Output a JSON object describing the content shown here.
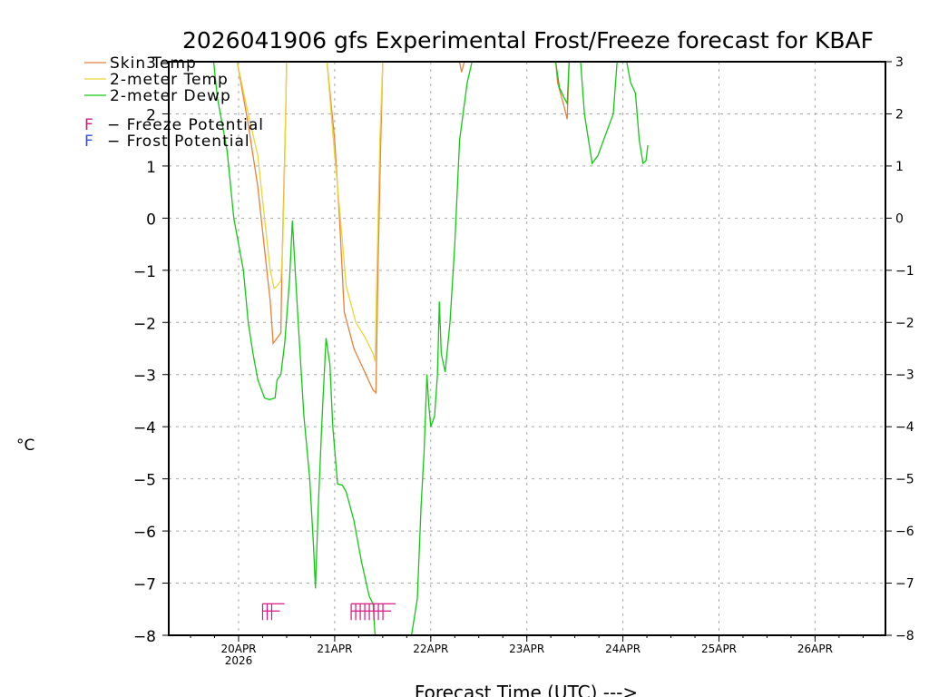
{
  "chart_data": {
    "type": "line",
    "title": "2026041906 gfs Experimental Frost/Freeze forecast for KBAF",
    "xlabel": "Forecast Time (UTC) --->",
    "ylabel": "°C",
    "ylim": [
      -8,
      3
    ],
    "xlim_days": [
      -0.73,
      6.73
    ],
    "y_ticks": [
      3,
      2,
      1,
      0,
      -1,
      -2,
      -3,
      -4,
      -5,
      -6,
      -7,
      -8
    ],
    "y_tick_labels": [
      "3",
      "2",
      "1",
      "0",
      "−1",
      "−2",
      "−3",
      "−4",
      "−5",
      "−6",
      "−7",
      "−8"
    ],
    "right_tick_labels": [
      "3",
      "2",
      "1",
      "0",
      "−1",
      "−2",
      "−3",
      "−4",
      "−5",
      "−6",
      "−7",
      "−8"
    ],
    "x_ticks": [
      0,
      1,
      2,
      3,
      4,
      5,
      6
    ],
    "x_tick_labels": [
      "20APR",
      "21APR",
      "22APR",
      "23APR",
      "24APR",
      "25APR",
      "26APR"
    ],
    "x_tick_sublabel": "2026",
    "grid": true,
    "legend_position": "top-left",
    "legend": [
      {
        "label": "Skin Temp",
        "color": "#e8803a",
        "kind": "line"
      },
      {
        "label": "2-meter Temp",
        "color": "#e8d63a",
        "kind": "line"
      },
      {
        "label": "2-meter Dewp",
        "color": "#14c814",
        "kind": "line"
      },
      {
        "label": "F - Freeze Potential",
        "color": "#d81480",
        "kind": "marker",
        "marker": "F"
      },
      {
        "label": "F - Frost Potential",
        "color": "#3050e8",
        "kind": "marker",
        "marker": "F"
      }
    ],
    "series": [
      {
        "name": "Skin Temp",
        "color": "#e8803a",
        "segments": [
          [
            [
              -0.015,
              3.0
            ],
            [
              0.1,
              1.8
            ],
            [
              0.2,
              0.6
            ],
            [
              0.27,
              -0.6
            ],
            [
              0.33,
              -1.6
            ],
            [
              0.36,
              -2.4
            ],
            [
              0.4,
              -2.3
            ],
            [
              0.44,
              -2.2
            ],
            [
              0.45,
              -1.0
            ],
            [
              0.47,
              0.5
            ],
            [
              0.49,
              2.0
            ],
            [
              0.5,
              3.0
            ]
          ],
          [
            [
              0.92,
              3.0
            ],
            [
              1.0,
              1.5
            ],
            [
              1.05,
              0.0
            ],
            [
              1.1,
              -1.8
            ],
            [
              1.2,
              -2.5
            ],
            [
              1.3,
              -2.9
            ],
            [
              1.4,
              -3.3
            ],
            [
              1.43,
              -3.35
            ],
            [
              1.45,
              -1.0
            ],
            [
              1.48,
              1.5
            ],
            [
              1.5,
              3.0
            ]
          ],
          [
            [
              2.3,
              3.0
            ],
            [
              2.32,
              2.8
            ],
            [
              2.35,
              3.0
            ]
          ],
          [
            [
              3.3,
              3.0
            ],
            [
              3.32,
              2.6
            ],
            [
              3.38,
              2.2
            ],
            [
              3.42,
              1.9
            ],
            [
              3.43,
              2.4
            ],
            [
              3.44,
              3.0
            ]
          ]
        ]
      },
      {
        "name": "2-meter Temp",
        "color": "#e8d63a",
        "segments": [
          [
            [
              -0.015,
              3.0
            ],
            [
              0.1,
              2.0
            ],
            [
              0.2,
              1.2
            ],
            [
              0.27,
              0.0
            ],
            [
              0.33,
              -1.0
            ],
            [
              0.37,
              -1.35
            ],
            [
              0.4,
              -1.3
            ],
            [
              0.44,
              -1.2
            ],
            [
              0.46,
              -0.5
            ],
            [
              0.48,
              1.0
            ],
            [
              0.5,
              3.0
            ]
          ],
          [
            [
              0.92,
              3.0
            ],
            [
              1.0,
              1.2
            ],
            [
              1.05,
              0.2
            ],
            [
              1.12,
              -1.3
            ],
            [
              1.22,
              -2.0
            ],
            [
              1.32,
              -2.3
            ],
            [
              1.4,
              -2.6
            ],
            [
              1.42,
              -2.75
            ],
            [
              1.44,
              -1.0
            ],
            [
              1.47,
              1.5
            ],
            [
              1.5,
              3.0
            ]
          ]
        ]
      },
      {
        "name": "2-meter Dewp",
        "color": "#14c814",
        "segments": [
          [
            [
              -0.26,
              3.0
            ],
            [
              -0.22,
              2.3
            ],
            [
              -0.12,
              1.3
            ],
            [
              -0.05,
              0.0
            ],
            [
              0.05,
              -1.0
            ],
            [
              0.1,
              -2.0
            ],
            [
              0.15,
              -2.6
            ],
            [
              0.2,
              -3.1
            ],
            [
              0.27,
              -3.45
            ],
            [
              0.32,
              -3.48
            ],
            [
              0.38,
              -3.45
            ],
            [
              0.4,
              -3.1
            ],
            [
              0.44,
              -3.0
            ],
            [
              0.48,
              -2.4
            ],
            [
              0.53,
              -1.2
            ],
            [
              0.56,
              -0.05
            ],
            [
              0.58,
              -0.7
            ],
            [
              0.62,
              -2.0
            ],
            [
              0.68,
              -3.8
            ],
            [
              0.74,
              -5.0
            ],
            [
              0.78,
              -6.3
            ],
            [
              0.8,
              -7.1
            ],
            [
              0.83,
              -5.5
            ],
            [
              0.87,
              -3.8
            ],
            [
              0.91,
              -2.3
            ],
            [
              0.95,
              -2.8
            ],
            [
              0.98,
              -4.0
            ],
            [
              1.03,
              -5.1
            ],
            [
              1.08,
              -5.12
            ],
            [
              1.12,
              -5.25
            ],
            [
              1.2,
              -5.8
            ],
            [
              1.28,
              -6.6
            ],
            [
              1.36,
              -7.25
            ],
            [
              1.4,
              -7.4
            ],
            [
              1.42,
              -8.0
            ]
          ],
          [
            [
              1.8,
              -8.0
            ],
            [
              1.86,
              -7.3
            ],
            [
              1.9,
              -5.5
            ],
            [
              1.93,
              -4.5
            ],
            [
              1.96,
              -3.0
            ],
            [
              1.98,
              -3.6
            ],
            [
              2.0,
              -4.0
            ],
            [
              2.04,
              -3.8
            ],
            [
              2.07,
              -3.0
            ],
            [
              2.09,
              -1.6
            ],
            [
              2.11,
              -2.6
            ],
            [
              2.15,
              -2.95
            ],
            [
              2.2,
              -2.0
            ],
            [
              2.25,
              -0.5
            ],
            [
              2.3,
              1.5
            ],
            [
              2.38,
              2.6
            ],
            [
              2.43,
              3.0
            ]
          ],
          [
            [
              3.3,
              3.0
            ],
            [
              3.34,
              2.5
            ],
            [
              3.39,
              2.3
            ],
            [
              3.42,
              2.2
            ],
            [
              3.44,
              3.0
            ]
          ],
          [
            [
              3.56,
              3.0
            ],
            [
              3.6,
              2.0
            ],
            [
              3.68,
              1.05
            ],
            [
              3.74,
              1.2
            ],
            [
              3.8,
              1.5
            ],
            [
              3.9,
              2.0
            ],
            [
              3.94,
              3.0
            ]
          ],
          [
            [
              4.04,
              3.0
            ],
            [
              4.08,
              2.6
            ],
            [
              4.13,
              2.4
            ],
            [
              4.17,
              1.5
            ],
            [
              4.21,
              1.05
            ],
            [
              4.24,
              1.1
            ],
            [
              4.26,
              1.4
            ]
          ]
        ]
      }
    ],
    "freeze_markers": [
      {
        "day": 0.25,
        "count": 3,
        "value": -7.5
      },
      {
        "day": 1.2,
        "count": 8,
        "value": -7.5
      }
    ],
    "frost_markers": []
  }
}
